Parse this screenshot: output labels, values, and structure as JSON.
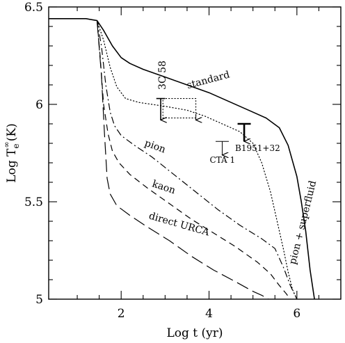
{
  "chart_data": {
    "type": "line",
    "xlabel": "Log  t  (yr)",
    "ylabel": "Log  T",
    "ylabel_sup": "∞",
    "ylabel_sub": "e",
    "ylabel_tail": "(K)",
    "xlim": [
      0.35,
      7.0
    ],
    "ylim": [
      5.0,
      6.5
    ],
    "xticks": [
      {
        "value": 2,
        "label": "2"
      },
      {
        "value": 4,
        "label": "4"
      },
      {
        "value": 6,
        "label": "6"
      }
    ],
    "yticks": [
      {
        "value": 5.0,
        "label": "5"
      },
      {
        "value": 5.5,
        "label": "5.5"
      },
      {
        "value": 6.0,
        "label": "6"
      },
      {
        "value": 6.5,
        "label": "6.5"
      }
    ],
    "series": [
      {
        "name": "standard",
        "style": "solid",
        "width": 1.6,
        "label_angle": -15,
        "x": [
          0.35,
          1.2,
          1.45,
          1.6,
          1.8,
          2.0,
          2.2,
          2.5,
          3.0,
          3.5,
          4.0,
          4.5,
          5.0,
          5.3,
          5.6,
          5.8,
          6.0,
          6.1,
          6.2,
          6.3,
          6.4
        ],
        "y": [
          6.44,
          6.44,
          6.43,
          6.38,
          6.3,
          6.24,
          6.21,
          6.18,
          6.14,
          6.1,
          6.06,
          6.01,
          5.96,
          5.93,
          5.88,
          5.79,
          5.63,
          5.5,
          5.35,
          5.15,
          5.0
        ]
      },
      {
        "name": "pion + superfluid",
        "style": "dotted",
        "width": 1.2,
        "label_angle": -76,
        "x": [
          1.45,
          1.6,
          1.75,
          1.9,
          2.1,
          2.4,
          3.0,
          3.5,
          3.9,
          4.3,
          4.7,
          5.0,
          5.2,
          5.4,
          5.55,
          5.7,
          5.8,
          5.9,
          6.0
        ],
        "y": [
          6.43,
          6.33,
          6.19,
          6.09,
          6.03,
          6.01,
          5.99,
          5.97,
          5.94,
          5.9,
          5.86,
          5.8,
          5.7,
          5.55,
          5.4,
          5.25,
          5.14,
          5.05,
          5.0
        ]
      },
      {
        "name": "pion",
        "style": "dashdot",
        "width": 1.2,
        "label_angle": 20,
        "x": [
          1.45,
          1.55,
          1.65,
          1.75,
          1.85,
          2.0,
          2.3,
          2.7,
          3.2,
          3.7,
          4.2,
          4.7,
          5.2,
          5.5,
          5.7,
          5.85,
          6.0
        ],
        "y": [
          6.43,
          6.3,
          6.1,
          5.96,
          5.89,
          5.84,
          5.79,
          5.73,
          5.64,
          5.55,
          5.46,
          5.38,
          5.31,
          5.26,
          5.16,
          5.07,
          5.0
        ]
      },
      {
        "name": "kaon",
        "style": "dashed",
        "width": 1.2,
        "label_angle": 18,
        "x": [
          1.45,
          1.52,
          1.6,
          1.7,
          1.8,
          1.95,
          2.2,
          2.6,
          3.1,
          3.6,
          4.1,
          4.6,
          5.1,
          5.4,
          5.6,
          5.75,
          5.85
        ],
        "y": [
          6.43,
          6.25,
          6.0,
          5.85,
          5.76,
          5.7,
          5.64,
          5.57,
          5.49,
          5.41,
          5.34,
          5.27,
          5.19,
          5.13,
          5.07,
          5.03,
          5.0
        ]
      },
      {
        "name": "direct URCA",
        "style": "longdash",
        "width": 1.2,
        "label_angle": 16,
        "x": [
          1.45,
          1.55,
          1.62,
          1.68,
          1.75,
          1.9,
          2.2,
          2.6,
          3.1,
          3.6,
          4.1,
          4.6,
          5.0,
          5.2,
          5.35
        ],
        "y": [
          6.43,
          6.15,
          5.85,
          5.62,
          5.54,
          5.48,
          5.43,
          5.37,
          5.3,
          5.22,
          5.15,
          5.09,
          5.04,
          5.02,
          5.0
        ]
      }
    ],
    "label_points": [
      {
        "series": "standard",
        "x": 4.0,
        "y": 6.11
      },
      {
        "series": "pion + superfluid",
        "x": 6.2,
        "y": 5.39
      },
      {
        "series": "pion",
        "x": 2.75,
        "y": 5.77
      },
      {
        "series": "kaon",
        "x": 2.95,
        "y": 5.56
      },
      {
        "series": "direct URCA",
        "x": 3.3,
        "y": 5.37
      }
    ],
    "observations": [
      {
        "name": "3C 58",
        "type": "upper_limit",
        "label_angle": -90,
        "x": 2.9,
        "y_bar": 6.03,
        "y_tip": 5.92,
        "bar_x": [
          2.8,
          3.0
        ],
        "weight": 1.6,
        "label": "3C 58"
      },
      {
        "name": "CTA 1",
        "type": "upper_limit",
        "label_angle": 0,
        "x": 4.3,
        "y_bar": 5.81,
        "y_tip": 5.74,
        "bar_x": [
          4.15,
          4.45
        ],
        "weight": 1.0,
        "label": "CTA 1"
      },
      {
        "name": "B1951+32",
        "type": "upper_limit",
        "label_angle": 0,
        "x": 4.8,
        "y_bar": 5.9,
        "y_tip": 5.81,
        "bar_x": [
          4.65,
          4.95
        ],
        "weight": 2.6,
        "label": "B1951+32"
      }
    ],
    "annotations": [
      {
        "type": "dotted_box",
        "x": [
          2.95,
          3.7
        ],
        "y": [
          5.93,
          6.03
        ]
      },
      {
        "type": "small_arrow",
        "x": 3.7,
        "y_from": 5.95,
        "y_to": 5.92
      }
    ]
  }
}
